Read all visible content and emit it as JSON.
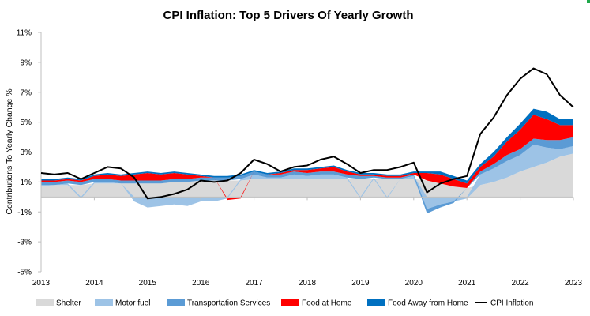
{
  "chart_data": {
    "type": "area",
    "title": "CPI Inflation: Top 5 Drivers Of Yearly Growth",
    "xlabel": "",
    "ylabel": "Contributions To Yearly Change %",
    "ylim": [
      -5,
      11
    ],
    "yticks": [
      "11%",
      "9%",
      "7%",
      "5%",
      "3%",
      "1%",
      "-1%",
      "-3%",
      "-5%"
    ],
    "ytick_values": [
      11,
      9,
      7,
      5,
      3,
      1,
      -1,
      -3,
      -5
    ],
    "xticks": [
      "2013",
      "2014",
      "2015",
      "2016",
      "2017",
      "2018",
      "2019",
      "2020",
      "2021",
      "2022",
      "2023"
    ],
    "xlim": [
      2013.0,
      2023.0
    ],
    "x": [
      2013.0,
      2013.25,
      2013.5,
      2013.75,
      2014.0,
      2014.25,
      2014.5,
      2014.75,
      2015.0,
      2015.25,
      2015.5,
      2015.75,
      2016.0,
      2016.25,
      2016.5,
      2016.75,
      2017.0,
      2017.25,
      2017.5,
      2017.75,
      2018.0,
      2018.25,
      2018.5,
      2018.75,
      2019.0,
      2019.25,
      2019.5,
      2019.75,
      2020.0,
      2020.25,
      2020.5,
      2020.75,
      2021.0,
      2021.25,
      2021.5,
      2021.75,
      2022.0,
      2022.25,
      2022.5,
      2022.75,
      2023.0
    ],
    "series": [
      {
        "name": "Shelter",
        "color": "#d9d9d9",
        "values": [
          0.7,
          0.8,
          0.8,
          0.8,
          0.9,
          0.9,
          0.9,
          0.9,
          0.9,
          0.9,
          1.0,
          1.0,
          1.1,
          1.1,
          1.1,
          1.1,
          1.2,
          1.2,
          1.2,
          1.2,
          1.2,
          1.2,
          1.2,
          1.2,
          1.2,
          1.2,
          1.2,
          1.2,
          1.2,
          1.1,
          0.9,
          0.7,
          0.6,
          0.8,
          1.0,
          1.3,
          1.7,
          2.0,
          2.3,
          2.7,
          2.9
        ]
      },
      {
        "name": "Motor fuel",
        "color": "#9dc3e6",
        "values": [
          0.1,
          0.0,
          0.1,
          -0.1,
          0.1,
          0.1,
          0.0,
          -0.3,
          -0.7,
          -0.6,
          -0.5,
          -0.6,
          -0.3,
          -0.3,
          -0.1,
          0.1,
          0.3,
          0.1,
          0.1,
          0.3,
          0.2,
          0.3,
          0.3,
          0.1,
          -0.1,
          0.1,
          -0.1,
          0.0,
          0.2,
          -0.8,
          -0.5,
          -0.3,
          -0.1,
          0.7,
          0.9,
          1.1,
          1.1,
          1.5,
          1.0,
          0.5,
          0.5
        ]
      },
      {
        "name": "Transportation Services",
        "color": "#5b9bd5",
        "values": [
          0.2,
          0.2,
          0.2,
          0.2,
          0.2,
          0.2,
          0.2,
          0.2,
          0.2,
          0.2,
          0.2,
          0.2,
          0.2,
          0.2,
          0.2,
          0.2,
          0.2,
          0.2,
          0.2,
          0.2,
          0.2,
          0.2,
          0.2,
          0.2,
          0.2,
          0.1,
          0.1,
          0.1,
          0.1,
          -0.3,
          -0.2,
          -0.1,
          0.0,
          0.2,
          0.3,
          0.4,
          0.4,
          0.4,
          0.5,
          0.6,
          0.6
        ]
      },
      {
        "name": "Food at Home",
        "color": "#ff0000",
        "values": [
          0.1,
          0.1,
          0.1,
          0.1,
          0.2,
          0.3,
          0.3,
          0.4,
          0.5,
          0.4,
          0.4,
          0.3,
          0.1,
          0.0,
          -0.1,
          -0.1,
          0.0,
          0.0,
          0.1,
          0.1,
          0.2,
          0.2,
          0.3,
          0.2,
          0.1,
          0.1,
          0.1,
          0.1,
          0.1,
          0.5,
          0.6,
          0.5,
          0.3,
          0.3,
          0.5,
          0.9,
          1.3,
          1.6,
          1.4,
          1.0,
          0.8
        ]
      },
      {
        "name": "Food Away from Home",
        "color": "#0070c0",
        "values": [
          0.1,
          0.1,
          0.1,
          0.1,
          0.1,
          0.1,
          0.1,
          0.1,
          0.1,
          0.1,
          0.1,
          0.1,
          0.1,
          0.1,
          0.1,
          0.1,
          0.1,
          0.1,
          0.1,
          0.1,
          0.1,
          0.1,
          0.1,
          0.1,
          0.1,
          0.1,
          0.1,
          0.1,
          0.1,
          0.1,
          0.2,
          0.2,
          0.2,
          0.2,
          0.3,
          0.3,
          0.4,
          0.4,
          0.5,
          0.4,
          0.4
        ]
      },
      {
        "name": "CPI Inflation",
        "type": "line",
        "color": "#000000",
        "values": [
          1.6,
          1.5,
          1.6,
          1.2,
          1.6,
          2.0,
          1.9,
          1.3,
          -0.1,
          0.0,
          0.2,
          0.5,
          1.1,
          1.0,
          1.1,
          1.6,
          2.5,
          2.2,
          1.7,
          2.0,
          2.1,
          2.5,
          2.7,
          2.2,
          1.6,
          1.8,
          1.8,
          2.0,
          2.3,
          0.3,
          0.9,
          1.2,
          1.4,
          4.2,
          5.3,
          6.8,
          7.9,
          8.6,
          8.2,
          6.8,
          6.0
        ]
      }
    ],
    "legend": {
      "position": "bottom"
    },
    "grid": false
  },
  "colors": {
    "corner_mark": "#1fa84a"
  }
}
